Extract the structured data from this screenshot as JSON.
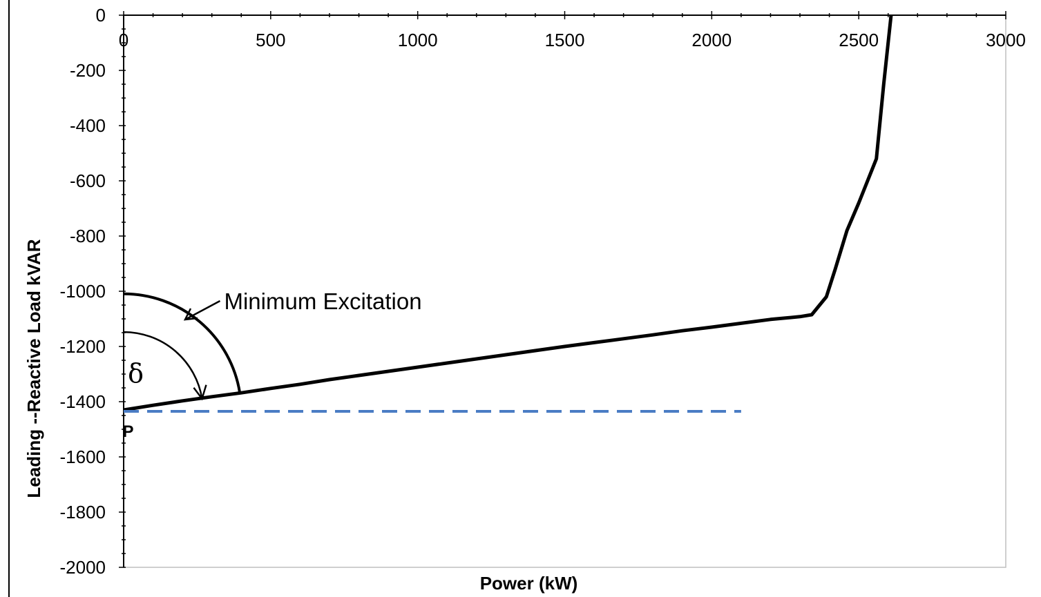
{
  "chart_data": {
    "type": "line",
    "xlabel": "Power (kW)",
    "ylabel": "Leading  --Reactive Load kVAR",
    "xlim": [
      0,
      3000
    ],
    "ylim": [
      -2000,
      0
    ],
    "x_ticks": [
      0,
      500,
      1000,
      1500,
      2000,
      2500,
      3000
    ],
    "y_ticks": [
      0,
      -200,
      -400,
      -600,
      -800,
      -1000,
      -1200,
      -1400,
      -1600,
      -1800,
      -2000
    ],
    "x_tick_labels": [
      "0",
      "500",
      "1000",
      "1500",
      "2000",
      "2500",
      "3000"
    ],
    "y_tick_labels": [
      "0",
      "-200",
      "-400",
      "-600",
      "-800",
      "-1000",
      "-1200",
      "-1400",
      "-1600",
      "-1800",
      "-2000"
    ],
    "x_axis_position": "top",
    "grid": false,
    "series": [
      {
        "color": "#000000",
        "style": "solid",
        "x": [
          0,
          100,
          200,
          300,
          400,
          500,
          600,
          700,
          800,
          900,
          1000,
          1100,
          1200,
          1300,
          1400,
          1500,
          1600,
          1700,
          1800,
          1900,
          2000,
          2100,
          2200,
          2300,
          2340,
          2390,
          2420,
          2460,
          2500,
          2560,
          2585,
          2610
        ],
        "y": [
          -1430,
          -1413,
          -1397,
          -1382,
          -1368,
          -1352,
          -1337,
          -1320,
          -1305,
          -1290,
          -1275,
          -1260,
          -1245,
          -1230,
          -1215,
          -1200,
          -1186,
          -1172,
          -1158,
          -1143,
          -1130,
          -1116,
          -1102,
          -1092,
          -1085,
          -1020,
          -920,
          -780,
          -680,
          -520,
          -250,
          0
        ]
      },
      {
        "color": "#4a7cc4",
        "style": "dashed",
        "x": [
          0,
          2100
        ],
        "y": [
          -1435,
          -1435
        ]
      }
    ],
    "annotations": [
      {
        "text": "Minimum Excitation",
        "x": 370,
        "y": -1040
      },
      {
        "text": "δ",
        "x": 120,
        "y": -1310
      },
      {
        "text": "P",
        "x": 20,
        "y": -1490
      }
    ],
    "arcs": [
      {
        "center": [
          0,
          -1435
        ],
        "radius_kw": 400,
        "style": "thick"
      },
      {
        "center": [
          0,
          -1435
        ],
        "radius_kw": 270,
        "style": "thin-arrow"
      }
    ]
  }
}
